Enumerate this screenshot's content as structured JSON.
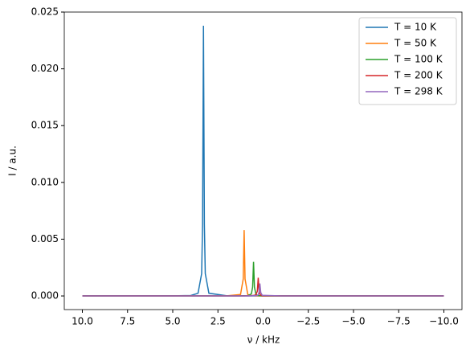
{
  "chart_data": {
    "type": "line",
    "x_label": "ν / kHz",
    "y_label": "I / a.u.",
    "x": [
      10,
      5,
      4,
      3.6,
      3.4,
      3.35,
      3.3,
      3.25,
      3.2,
      3,
      2,
      1.25,
      1.1,
      1.05,
      1.0,
      0.85,
      0.65,
      0.58,
      0.53,
      0.48,
      0.4,
      0.32,
      0.27,
      0.23,
      0.18,
      0.13,
      0.05,
      -1,
      -5,
      -10
    ],
    "series": [
      {
        "name": "T = 10 K",
        "color": "#1f77b4",
        "values": [
          0,
          1e-05,
          4e-05,
          0.00024,
          0.00197,
          0.0063,
          0.0238,
          0.0063,
          0.00197,
          0.00024,
          1e-05,
          0,
          0,
          0,
          0,
          0,
          0,
          0,
          0,
          0,
          0,
          0,
          0,
          0,
          0,
          0,
          0,
          0,
          0,
          0
        ]
      },
      {
        "name": "T = 50 K",
        "color": "#ff7f0e",
        "values": [
          0,
          0,
          0,
          0,
          0,
          0,
          0,
          0,
          0,
          0,
          1e-05,
          0.00013,
          0.0015,
          0.0058,
          0.0015,
          0.00013,
          3e-05,
          2e-05,
          2e-05,
          1e-05,
          1e-05,
          1e-05,
          1e-05,
          1e-05,
          1e-05,
          1e-05,
          0,
          0,
          0,
          0
        ]
      },
      {
        "name": "T = 100 K",
        "color": "#2ca02c",
        "values": [
          0,
          0,
          0,
          0,
          0,
          0,
          0,
          0,
          0,
          0,
          0,
          1e-05,
          2e-05,
          2e-05,
          2e-05,
          3e-05,
          0.00018,
          0.00078,
          0.003,
          0.00078,
          0.00015,
          6e-05,
          4e-05,
          3e-05,
          2e-05,
          2e-05,
          1e-05,
          0,
          0,
          0
        ]
      },
      {
        "name": "T = 200 K",
        "color": "#d62728",
        "values": [
          0,
          0,
          0,
          0,
          0,
          0,
          0,
          0,
          0,
          0,
          0,
          0,
          0,
          0,
          1e-05,
          1e-05,
          2e-05,
          4e-05,
          5e-05,
          6e-05,
          0.0001,
          0.00042,
          0.0016,
          0.00058,
          0.00016,
          7e-05,
          2e-05,
          0,
          0,
          0
        ]
      },
      {
        "name": "T = 298 K",
        "color": "#9467bd",
        "values": [
          0,
          0,
          0,
          0,
          0,
          0,
          0,
          0,
          0,
          0,
          0,
          0,
          0,
          0,
          0,
          1e-05,
          1e-05,
          2e-05,
          2e-05,
          2e-05,
          3e-05,
          5e-05,
          0.00011,
          0.0003,
          0.0011,
          0.0003,
          6e-05,
          0,
          0,
          0
        ]
      }
    ],
    "xlim": [
      11,
      -11
    ],
    "xticks": [
      {
        "value": 10,
        "label": "10.0"
      },
      {
        "value": 7.5,
        "label": "7.5"
      },
      {
        "value": 5,
        "label": "5.0"
      },
      {
        "value": 2.5,
        "label": "2.5"
      },
      {
        "value": 0,
        "label": "0.0"
      },
      {
        "value": -2.5,
        "label": "−2.5"
      },
      {
        "value": -5,
        "label": "−5.0"
      },
      {
        "value": -7.5,
        "label": "−7.5"
      },
      {
        "value": -10,
        "label": "−10.0"
      }
    ],
    "ylim": [
      -0.0012,
      0.025
    ],
    "yticks": [
      {
        "value": 0,
        "label": "0.000"
      },
      {
        "value": 0.005,
        "label": "0.005"
      },
      {
        "value": 0.01,
        "label": "0.010"
      },
      {
        "value": 0.015,
        "label": "0.015"
      },
      {
        "value": 0.02,
        "label": "0.020"
      },
      {
        "value": 0.025,
        "label": "0.025"
      }
    ],
    "legend": "upper right",
    "grid": false
  }
}
